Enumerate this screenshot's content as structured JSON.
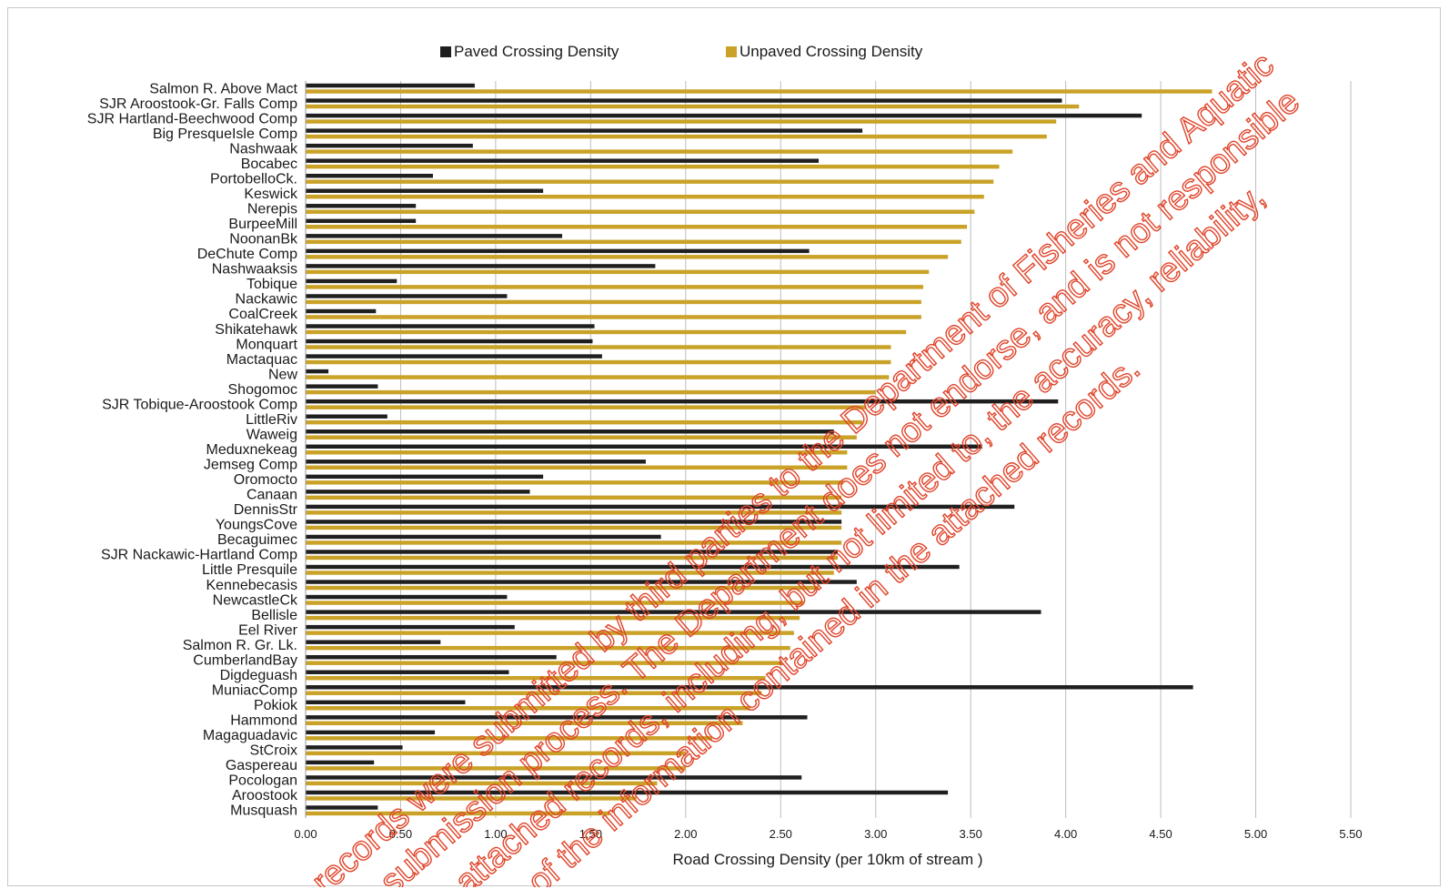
{
  "chart_data": {
    "type": "bar",
    "orientation": "horizontal",
    "title": "",
    "xlabel": "Road  Crossing Density (per 10km of stream )",
    "ylabel": "",
    "xlim": [
      0,
      5.5
    ],
    "xticks": [
      "0.00",
      "0.50",
      "1.00",
      "1.50",
      "2.00",
      "2.50",
      "3.00",
      "3.50",
      "4.00",
      "4.50",
      "5.00",
      "5.50"
    ],
    "grid": "vertical",
    "legend_position": "top",
    "categories": [
      "Salmon R. Above Mact",
      "SJR Aroostook-Gr. Falls Comp",
      "SJR Hartland-Beechwood Comp",
      "Big PresqueIsle Comp",
      "Nashwaak",
      "Bocabec",
      "PortobelloCk.",
      "Keswick",
      "Nerepis",
      "BurpeeMill",
      "NoonanBk",
      "DeChute Comp",
      "Nashwaaksis",
      "Tobique",
      "Nackawic",
      "CoalCreek",
      "Shikatehawk",
      "Monquart",
      "Mactaquac",
      "New",
      "Shogomoc",
      "SJR Tobique-Aroostook Comp",
      "LittleRiv",
      "Waweig",
      "Meduxnekeag",
      "Jemseg Comp",
      "Oromocto",
      "Canaan",
      "DennisStr",
      "YoungsCove",
      "Becaguimec",
      "SJR Nackawic-Hartland Comp",
      "Little Presquile",
      "Kennebecasis",
      "NewcastleCk",
      "Bellisle",
      "Eel River",
      "Salmon R. Gr. Lk.",
      "CumberlandBay",
      "Digdeguash",
      "MuniacComp",
      "Pokiok",
      "Hammond",
      "Magaguadavic",
      "StCroix",
      "Gaspereau",
      "Pocologan",
      "Aroostook",
      "Musquash"
    ],
    "series": [
      {
        "name": "Paved Crossing Density",
        "color": "#1f1f1f",
        "values": [
          0.89,
          3.98,
          4.4,
          2.93,
          0.88,
          2.7,
          0.67,
          1.25,
          0.58,
          0.58,
          1.35,
          2.65,
          1.84,
          0.48,
          1.06,
          0.37,
          1.52,
          1.51,
          1.56,
          0.12,
          0.38,
          3.96,
          0.43,
          2.78,
          3.56,
          1.79,
          1.25,
          1.18,
          3.73,
          2.82,
          1.87,
          2.8,
          3.44,
          2.9,
          1.06,
          3.87,
          1.1,
          0.71,
          1.32,
          1.07,
          4.67,
          0.84,
          2.64,
          0.68,
          0.51,
          0.36,
          2.61,
          3.38,
          0.38
        ]
      },
      {
        "name": "Unpaved Crossing Density",
        "color": "#c9a227",
        "values": [
          4.77,
          4.07,
          3.95,
          3.9,
          3.72,
          3.65,
          3.62,
          3.57,
          3.52,
          3.48,
          3.45,
          3.38,
          3.28,
          3.25,
          3.24,
          3.24,
          3.16,
          3.08,
          3.08,
          3.07,
          3.0,
          2.95,
          2.93,
          2.9,
          2.85,
          2.85,
          2.83,
          2.82,
          2.82,
          2.82,
          2.82,
          2.8,
          2.78,
          2.7,
          2.62,
          2.6,
          2.57,
          2.55,
          2.51,
          2.42,
          2.4,
          2.34,
          2.3,
          2.14,
          2.0,
          2.0,
          1.85,
          1.74,
          1.6
        ]
      }
    ]
  },
  "watermark": {
    "lines": [
      "records were submitted by third parties to the Department of Fisheries and Aquatic",
      "submission process. The Department does not endorse, and is not responsible",
      "attached records, including, but not limited to, the accuracy, reliability,",
      "of the information contained in the attached records."
    ],
    "color": "#e0442a"
  }
}
